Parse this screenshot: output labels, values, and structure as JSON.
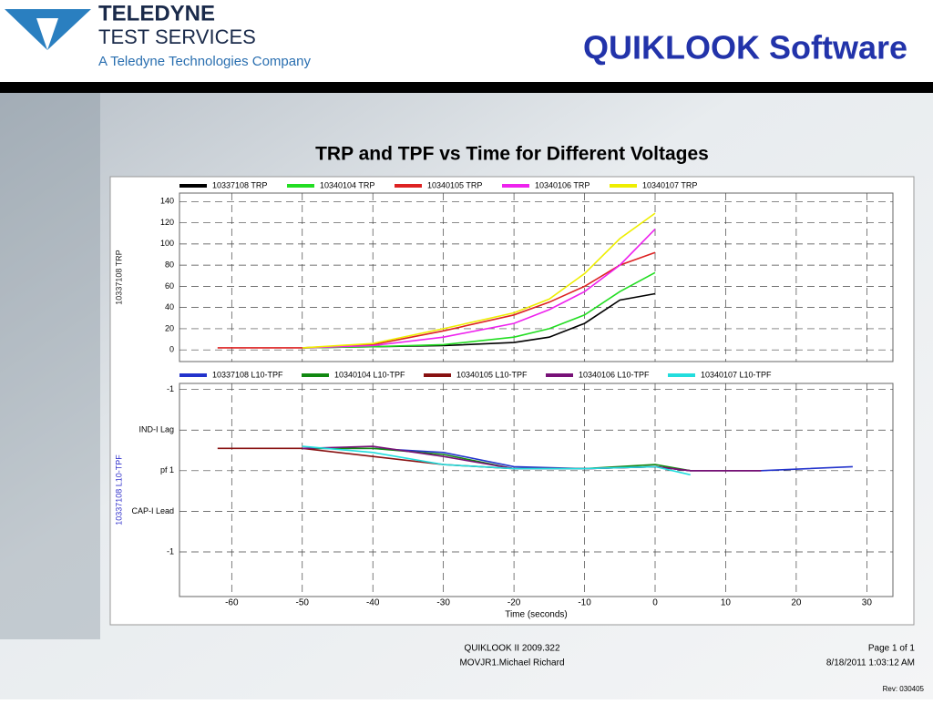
{
  "header": {
    "brand": "TELEDYNE",
    "division": "TEST SERVICES",
    "tagline": "A Teledyne Technologies Company",
    "product": "QUIKLOOK Software"
  },
  "slide_title": "TRP and TPF vs Time for Different Voltages",
  "chart_data": [
    {
      "type": "line",
      "ylabel": "10337108   TRP",
      "ylabel_color": "#222222",
      "x": [
        -62,
        -50,
        -40,
        -30,
        -20,
        -15,
        -10,
        -5,
        0
      ],
      "xlim": [
        -67.4,
        33.7
      ],
      "xticks": [
        -60,
        -50,
        -40,
        -30,
        -20,
        -10,
        0,
        10,
        20,
        30
      ],
      "ylim": [
        -11,
        148
      ],
      "yticks": [
        0,
        20,
        40,
        60,
        80,
        100,
        120,
        140
      ],
      "grid": true,
      "series": [
        {
          "name": "10337108   TRP",
          "color": "#000000",
          "values": [
            null,
            2,
            3,
            4,
            7,
            12,
            25,
            47,
            53
          ]
        },
        {
          "name": "10340104   TRP",
          "color": "#22dd22",
          "values": [
            null,
            2,
            3,
            5,
            12,
            20,
            33,
            55,
            73
          ]
        },
        {
          "name": "10340105   TRP",
          "color": "#dd2222",
          "values": [
            2,
            2,
            5,
            18,
            33,
            45,
            60,
            80,
            92
          ]
        },
        {
          "name": "10340106   TRP",
          "color": "#ee22ee",
          "values": [
            null,
            2,
            4,
            12,
            25,
            38,
            55,
            80,
            114
          ]
        },
        {
          "name": "10340107   TRP",
          "color": "#eeee00",
          "values": [
            null,
            2,
            6,
            20,
            35,
            48,
            72,
            105,
            129
          ]
        }
      ]
    },
    {
      "type": "line",
      "ylabel": "10337108   L10-TPF",
      "ylabel_color": "#3333cc",
      "xlabel": "Time  (seconds)",
      "x": [
        -62,
        -50,
        -40,
        -30,
        -20,
        -10,
        0,
        5,
        15,
        28
      ],
      "xlim": [
        -67.4,
        33.7
      ],
      "xticks": [
        -60,
        -50,
        -40,
        -30,
        -20,
        -10,
        0,
        10,
        20,
        30
      ],
      "ylim": [
        -3.1,
        2.15
      ],
      "yticks": [
        {
          "value": 2,
          "label": "-1"
        },
        {
          "value": 1,
          "label": "IND-I Lag"
        },
        {
          "value": 0,
          "label": "pf 1"
        },
        {
          "value": -1,
          "label": "CAP-I Lead"
        },
        {
          "value": -2,
          "label": "-1"
        }
      ],
      "grid": true,
      "series": [
        {
          "name": "10337108   L10-TPF",
          "color": "#2233cc",
          "values": [
            null,
            0.55,
            0.55,
            0.45,
            0.1,
            0.05,
            0.1,
            0,
            0,
            0.1
          ]
        },
        {
          "name": "10340104   L10-TPF",
          "color": "#118811",
          "values": [
            null,
            0.55,
            0.55,
            0.4,
            0.05,
            0.05,
            0.15,
            0,
            null,
            null
          ]
        },
        {
          "name": "10340105   L10-TPF",
          "color": "#881111",
          "values": [
            0.55,
            0.55,
            0.35,
            0.15,
            0.05,
            0.05,
            0.1,
            0,
            0,
            null
          ]
        },
        {
          "name": "10340106   L10-TPF",
          "color": "#771177",
          "values": [
            null,
            0.55,
            0.6,
            0.35,
            0.05,
            0.05,
            0.1,
            0,
            0,
            null
          ]
        },
        {
          "name": "10340107   L10-TPF",
          "color": "#22dddd",
          "values": [
            null,
            0.6,
            0.45,
            0.15,
            0.05,
            0.05,
            0.1,
            -0.1,
            null,
            null
          ]
        }
      ]
    }
  ],
  "footer": {
    "version": "QUIKLOOK II 2009.322",
    "user": "MOVJR1.Michael Richard",
    "page": "Page 1 of 1",
    "timestamp": "8/18/2011 1:03:12 AM",
    "rev": "Rev: 030405"
  }
}
